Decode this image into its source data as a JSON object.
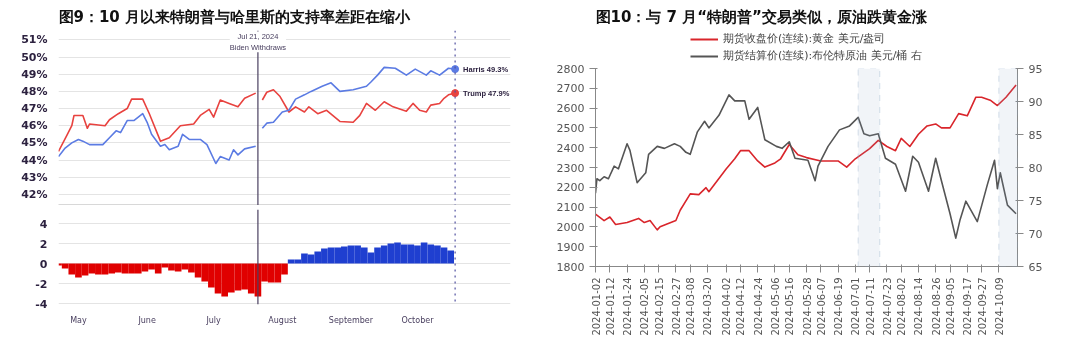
{
  "chart_data": [
    {
      "type": "line",
      "title": "图9：10 月以来特朗普与哈里斯的支持率差距在缩小",
      "series": [
        {
          "color": "#e8423f",
          "x": [
            "2024-04-22",
            "2024-04-26",
            "2024-04-28",
            "2024-04-29",
            "2024-05-03",
            "2024-05-05",
            "2024-05-06",
            "2024-05-13",
            "2024-05-15",
            "2024-05-19",
            "2024-05-23",
            "2024-05-25",
            "2024-05-30",
            "2024-06-02",
            "2024-06-07",
            "2024-06-11",
            "2024-06-16",
            "2024-06-22",
            "2024-06-25",
            "2024-06-29",
            "2024-07-01",
            "2024-07-04",
            "2024-07-08",
            "2024-07-12",
            "2024-07-15",
            "2024-07-20",
            "2024-07-21",
            "2024-07-23",
            "2024-07-25",
            "2024-07-28",
            "2024-07-31",
            "2024-08-04",
            "2024-08-07",
            "2024-08-11",
            "2024-08-13",
            "2024-08-17",
            "2024-08-21",
            "2024-08-27",
            "2024-09-02",
            "2024-09-05",
            "2024-09-08",
            "2024-09-12",
            "2024-09-16",
            "2024-09-20",
            "2024-09-26",
            "2024-09-29",
            "2024-10-02",
            "2024-10-05",
            "2024-10-07",
            "2024-10-11",
            "2024-10-13",
            "2024-10-15",
            "2024-10-18"
          ],
          "values": [
            44.5,
            45.5,
            46.0,
            46.6,
            46.6,
            45.85,
            46.1,
            46.0,
            46.35,
            46.7,
            47.0,
            47.55,
            47.55,
            46.7,
            45.1,
            45.3,
            46.0,
            46.1,
            46.6,
            46.95,
            46.5,
            47.5,
            47.3,
            47.1,
            47.6,
            47.9,
            null,
            47.5,
            47.95,
            48.1,
            47.7,
            46.8,
            47.1,
            46.8,
            47.1,
            46.7,
            46.9,
            46.25,
            46.2,
            46.6,
            47.3,
            46.9,
            47.4,
            47.1,
            46.85,
            47.3,
            46.9,
            46.8,
            47.2,
            47.3,
            47.6,
            47.8,
            47.9
          ]
        },
        {
          "color": "#5b7be3",
          "x": [
            "2024-04-22",
            "2024-04-25",
            "2024-04-28",
            "2024-05-01",
            "2024-05-03",
            "2024-05-06",
            "2024-05-12",
            "2024-05-15",
            "2024-05-18",
            "2024-05-20",
            "2024-05-23",
            "2024-05-26",
            "2024-05-30",
            "2024-06-01",
            "2024-06-03",
            "2024-06-07",
            "2024-06-09",
            "2024-06-11",
            "2024-06-15",
            "2024-06-17",
            "2024-06-20",
            "2024-06-25",
            "2024-06-28",
            "2024-07-02",
            "2024-07-04",
            "2024-07-08",
            "2024-07-10",
            "2024-07-12",
            "2024-07-15",
            "2024-07-20",
            "2024-07-21",
            "2024-07-23",
            "2024-07-25",
            "2024-07-28",
            "2024-08-01",
            "2024-08-04",
            "2024-08-07",
            "2024-08-11",
            "2024-08-14",
            "2024-08-19",
            "2024-08-23",
            "2024-08-27",
            "2024-09-02",
            "2024-09-05",
            "2024-09-08",
            "2024-09-10",
            "2024-09-13",
            "2024-09-16",
            "2024-09-21",
            "2024-09-26",
            "2024-09-30",
            "2024-10-05",
            "2024-10-07",
            "2024-10-11",
            "2024-10-15",
            "2024-10-18"
          ],
          "values": [
            44.2,
            44.7,
            45.0,
            45.2,
            45.1,
            44.9,
            44.9,
            45.3,
            45.7,
            45.6,
            46.3,
            46.3,
            46.7,
            46.2,
            45.5,
            44.8,
            44.9,
            44.6,
            44.8,
            45.5,
            45.2,
            45.2,
            44.9,
            43.8,
            44.2,
            44.0,
            44.6,
            44.3,
            44.65,
            44.8,
            null,
            45.85,
            46.15,
            46.2,
            46.8,
            46.9,
            47.55,
            47.8,
            48.0,
            48.3,
            48.5,
            48.0,
            48.1,
            48.2,
            48.3,
            48.55,
            48.95,
            49.4,
            49.35,
            48.95,
            49.3,
            48.95,
            49.2,
            48.95,
            49.35,
            49.3
          ]
        }
      ],
      "xlim": [
        "2024-04-22",
        "2024-11-12"
      ],
      "ylim": [
        41.35,
        51.55
      ],
      "yticks": [
        {
          "value": 42,
          "label": "42%"
        },
        {
          "value": 43,
          "label": "43%"
        },
        {
          "value": 44,
          "label": "44%"
        },
        {
          "value": 45,
          "label": "45%"
        },
        {
          "value": 46,
          "label": "46%"
        },
        {
          "value": 47,
          "label": "47%"
        },
        {
          "value": 48,
          "label": "48%"
        },
        {
          "value": 49,
          "label": "49%"
        },
        {
          "value": 50,
          "label": "50%"
        },
        {
          "value": 51,
          "label": "51%"
        }
      ],
      "grid": "y",
      "ref_lines": [
        {
          "axis": "x",
          "value": "2024-07-21",
          "label": "Jul 21, 2024\nBiden Withdraws",
          "color": "#4a4060"
        },
        {
          "axis": "x",
          "value": "2024-10-18",
          "color": "#5050a0",
          "line_style": "dotted"
        }
      ],
      "annotations": [
        {
          "text": "Harris 49.3%",
          "x": "2024-10-18",
          "y": 49.3
        },
        {
          "text": "Trump 47.9%",
          "x": "2024-10-18",
          "y": 47.9
        }
      ]
    },
    {
      "type": "bar",
      "x": [
        "2024-04-22",
        "2024-04-25",
        "2024-04-28",
        "2024-05-01",
        "2024-05-04",
        "2024-05-07",
        "2024-05-10",
        "2024-05-13",
        "2024-05-16",
        "2024-05-19",
        "2024-05-22",
        "2024-05-25",
        "2024-05-28",
        "2024-05-31",
        "2024-06-03",
        "2024-06-06",
        "2024-06-09",
        "2024-06-12",
        "2024-06-15",
        "2024-06-18",
        "2024-06-21",
        "2024-06-24",
        "2024-06-27",
        "2024-06-30",
        "2024-07-03",
        "2024-07-06",
        "2024-07-09",
        "2024-07-12",
        "2024-07-15",
        "2024-07-18",
        "2024-07-21",
        "2024-07-24",
        "2024-07-27",
        "2024-07-30",
        "2024-08-02",
        "2024-08-05",
        "2024-08-08",
        "2024-08-11",
        "2024-08-14",
        "2024-08-17",
        "2024-08-20",
        "2024-08-23",
        "2024-08-26",
        "2024-08-29",
        "2024-09-01",
        "2024-09-04",
        "2024-09-07",
        "2024-09-10",
        "2024-09-13",
        "2024-09-16",
        "2024-09-19",
        "2024-09-22",
        "2024-09-25",
        "2024-09-28",
        "2024-10-01",
        "2024-10-04",
        "2024-10-07",
        "2024-10-10",
        "2024-10-13",
        "2024-10-16"
      ],
      "values": [
        -0.2,
        -0.5,
        -1.1,
        -1.4,
        -1.2,
        -1.0,
        -1.1,
        -1.1,
        -1.0,
        -0.9,
        -1.0,
        -1.0,
        -1.0,
        -0.8,
        -0.6,
        -1.0,
        -0.4,
        -0.7,
        -0.8,
        -0.6,
        -0.9,
        -1.4,
        -1.8,
        -2.4,
        -3.0,
        -3.3,
        -2.9,
        -2.7,
        -2.6,
        -3.0,
        -3.3,
        -1.8,
        -1.9,
        -1.9,
        -1.1,
        0.4,
        0.4,
        1.0,
        0.9,
        1.2,
        1.5,
        1.6,
        1.6,
        1.7,
        1.8,
        1.8,
        1.6,
        1.1,
        1.6,
        1.8,
        2.0,
        2.1,
        1.9,
        1.9,
        1.8,
        2.1,
        1.9,
        1.8,
        1.6,
        1.3
      ],
      "colors": [
        "#e00000",
        "#e00000",
        "#e00000",
        "#e00000",
        "#e00000",
        "#e00000",
        "#e00000",
        "#e00000",
        "#e00000",
        "#e00000",
        "#e00000",
        "#e00000",
        "#e00000",
        "#e00000",
        "#e00000",
        "#e00000",
        "#e00000",
        "#e00000",
        "#e00000",
        "#e00000",
        "#e00000",
        "#e00000",
        "#e00000",
        "#e00000",
        "#e00000",
        "#e00000",
        "#e00000",
        "#e00000",
        "#e00000",
        "#e00000",
        "#e00000",
        "#e00000",
        "#e00000",
        "#e00000",
        "#e00000",
        "#1f3fd0",
        "#1f3fd0",
        "#1f3fd0",
        "#1f3fd0",
        "#1f3fd0",
        "#1f3fd0",
        "#1f3fd0",
        "#1f3fd0",
        "#1f3fd0",
        "#1f3fd0",
        "#1f3fd0",
        "#1f3fd0",
        "#1f3fd0",
        "#1f3fd0",
        "#1f3fd0",
        "#1f3fd0",
        "#1f3fd0",
        "#1f3fd0",
        "#1f3fd0",
        "#1f3fd0",
        "#1f3fd0",
        "#1f3fd0",
        "#1f3fd0",
        "#1f3fd0",
        "#1f3fd0"
      ],
      "xlim": [
        "2024-04-22",
        "2024-11-12"
      ],
      "ylim": [
        -4.1,
        5.4
      ],
      "yticks": [
        -4,
        -2,
        0,
        2,
        4
      ],
      "xticks": [
        {
          "value": "2024-05-01",
          "label": "May"
        },
        {
          "value": "2024-06-01",
          "label": "June"
        },
        {
          "value": "2024-07-01",
          "label": "July"
        },
        {
          "value": "2024-08-01",
          "label": "August"
        },
        {
          "value": "2024-09-01",
          "label": "September"
        },
        {
          "value": "2024-10-01",
          "label": "October"
        }
      ],
      "grid": "y",
      "ref_lines": [
        {
          "axis": "x",
          "value": "2024-07-21",
          "color": "#4a4060"
        },
        {
          "axis": "x",
          "value": "2024-10-18",
          "color": "#5050a0",
          "line_style": "dotted"
        }
      ]
    },
    {
      "type": "line",
      "title": "图10：与 7 月“特朗普”交易类似，原油跌黄金涨",
      "series": [
        {
          "name": "期货收盘价(连续):黄金 美元/盎司",
          "color": "#d9252b",
          "x": [
            "2024-01-02",
            "2024-01-08",
            "2024-01-12",
            "2024-01-16",
            "2024-01-24",
            "2024-02-01",
            "2024-02-05",
            "2024-02-09",
            "2024-02-14",
            "2024-02-16",
            "2024-02-27",
            "2024-03-01",
            "2024-03-08",
            "2024-03-14",
            "2024-03-19",
            "2024-03-21",
            "2024-04-02",
            "2024-04-08",
            "2024-04-12",
            "2024-04-18",
            "2024-04-24",
            "2024-04-29",
            "2024-05-06",
            "2024-05-10",
            "2024-05-16",
            "2024-05-22",
            "2024-05-28",
            "2024-06-07",
            "2024-06-19",
            "2024-06-25",
            "2024-07-01",
            "2024-07-11",
            "2024-07-17",
            "2024-07-23",
            "2024-07-29",
            "2024-08-02",
            "2024-08-08",
            "2024-08-14",
            "2024-08-20",
            "2024-08-26",
            "2024-08-30",
            "2024-09-05",
            "2024-09-11",
            "2024-09-17",
            "2024-09-23",
            "2024-09-27",
            "2024-10-03",
            "2024-10-08",
            "2024-10-14",
            "2024-10-21"
          ],
          "values": [
            2064,
            2032,
            2050,
            2012,
            2022,
            2043,
            2022,
            2032,
            1985,
            2001,
            2032,
            2084,
            2167,
            2163,
            2198,
            2178,
            2292,
            2344,
            2385,
            2385,
            2333,
            2302,
            2323,
            2344,
            2416,
            2364,
            2350,
            2333,
            2333,
            2302,
            2344,
            2395,
            2437,
            2406,
            2385,
            2447,
            2406,
            2468,
            2510,
            2520,
            2500,
            2500,
            2572,
            2561,
            2655,
            2655,
            2640,
            2613,
            2655,
            2717
          ]
        },
        {
          "name": "期货结算价(连续):布伦特原油 美元/桶 右",
          "color": "#555555",
          "axis": "y2",
          "x": [
            "2024-01-02",
            "2024-01-03",
            "2024-01-05",
            "2024-01-08",
            "2024-01-11",
            "2024-01-15",
            "2024-01-18",
            "2024-01-24",
            "2024-01-26",
            "2024-01-31",
            "2024-02-06",
            "2024-02-08",
            "2024-02-14",
            "2024-02-19",
            "2024-02-26",
            "2024-03-01",
            "2024-03-05",
            "2024-03-08",
            "2024-03-13",
            "2024-03-18",
            "2024-03-21",
            "2024-03-28",
            "2024-04-04",
            "2024-04-08",
            "2024-04-15",
            "2024-04-18",
            "2024-04-24",
            "2024-04-29",
            "2024-05-07",
            "2024-05-11",
            "2024-05-16",
            "2024-05-20",
            "2024-05-29",
            "2024-06-03",
            "2024-06-05",
            "2024-06-12",
            "2024-06-20",
            "2024-06-27",
            "2024-07-03",
            "2024-07-07",
            "2024-07-11",
            "2024-07-17",
            "2024-07-22",
            "2024-07-29",
            "2024-08-05",
            "2024-08-10",
            "2024-08-14",
            "2024-08-21",
            "2024-08-26",
            "2024-08-30",
            "2024-09-05",
            "2024-09-09",
            "2024-09-12",
            "2024-09-16",
            "2024-09-24",
            "2024-10-01",
            "2024-10-06",
            "2024-10-08",
            "2024-10-10",
            "2024-10-15",
            "2024-10-21"
          ],
          "values": [
            76.1,
            78.3,
            78.0,
            78.6,
            78.3,
            80.2,
            79.8,
            83.6,
            82.6,
            77.7,
            79.2,
            82.0,
            83.2,
            82.9,
            83.6,
            83.2,
            82.3,
            82.0,
            85.4,
            87.0,
            86.0,
            87.9,
            91.0,
            90.1,
            90.1,
            87.3,
            89.1,
            84.2,
            83.2,
            82.9,
            83.9,
            81.4,
            81.1,
            78.0,
            80.2,
            83.2,
            85.7,
            86.3,
            87.6,
            85.1,
            84.8,
            85.1,
            81.4,
            80.5,
            76.4,
            81.7,
            80.8,
            76.4,
            81.4,
            78.0,
            73.0,
            69.3,
            72.1,
            74.9,
            71.8,
            77.4,
            81.1,
            76.8,
            79.2,
            74.3,
            73.0
          ]
        }
      ],
      "xlim": [
        "2024-01-02",
        "2024-10-22"
      ],
      "ylim": [
        1800,
        2800
      ],
      "yticks": [
        1800,
        1900,
        2000,
        2100,
        2200,
        2300,
        2400,
        2500,
        2600,
        2700,
        2800
      ],
      "y2lim": [
        65,
        95
      ],
      "y2ticks": [
        65,
        70,
        75,
        80,
        85,
        90,
        95
      ],
      "xticks": [
        "2024-01-02",
        "2024-01-12",
        "2024-01-24",
        "2024-02-05",
        "2024-02-15",
        "2024-02-27",
        "2024-03-08",
        "2024-03-20",
        "2024-04-02",
        "2024-04-12",
        "2024-04-24",
        "2024-05-06",
        "2024-05-16",
        "2024-05-28",
        "2024-06-07",
        "2024-06-19",
        "2024-07-01",
        "2024-07-11",
        "2024-07-23",
        "2024-08-02",
        "2024-08-14",
        "2024-08-26",
        "2024-09-05",
        "2024-09-17",
        "2024-09-27",
        "2024-10-09"
      ],
      "legend": "top",
      "bands": [
        {
          "axis": "x",
          "from": "2024-07-03",
          "to": "2024-07-18",
          "color": "#8fa8c8"
        },
        {
          "axis": "x",
          "from": "2024-10-09",
          "to": "2024-10-22",
          "color": "#8fa8c8"
        }
      ]
    }
  ]
}
